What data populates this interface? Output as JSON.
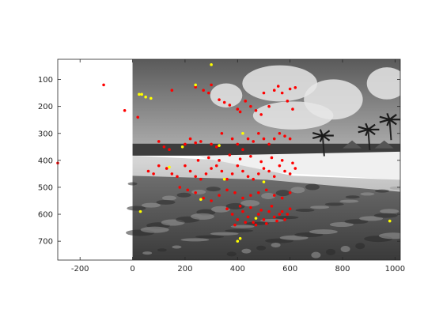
{
  "chart_data": {
    "type": "scatter",
    "title": "",
    "xlabel": "",
    "ylabel": "",
    "xlim": [
      -285,
      1020
    ],
    "ylim": [
      25,
      770
    ],
    "y_reversed": true,
    "grid": false,
    "x_ticks": [
      -200,
      0,
      200,
      400,
      600,
      800,
      1000
    ],
    "x_tick_labels": [
      "-200",
      "0",
      "200",
      "400",
      "600",
      "800",
      "1000"
    ],
    "y_ticks": [
      100,
      200,
      300,
      400,
      500,
      600,
      700
    ],
    "y_tick_labels": [
      "100",
      "200",
      "300",
      "400",
      "500",
      "600",
      "700"
    ],
    "background_image": {
      "description": "grayscale beach photograph",
      "x_range": [
        0,
        1020
      ],
      "y_range": [
        25,
        770
      ]
    },
    "series": [
      {
        "color": "#ff0000",
        "points": [
          [
            -110,
            120
          ],
          [
            -30,
            215
          ],
          [
            -285,
            410
          ],
          [
            20,
            240
          ],
          [
            150,
            140
          ],
          [
            240,
            128
          ],
          [
            270,
            140
          ],
          [
            290,
            150
          ],
          [
            300,
            120
          ],
          [
            330,
            175
          ],
          [
            350,
            185
          ],
          [
            370,
            195
          ],
          [
            400,
            210
          ],
          [
            410,
            220
          ],
          [
            430,
            180
          ],
          [
            450,
            200
          ],
          [
            470,
            215
          ],
          [
            490,
            230
          ],
          [
            500,
            150
          ],
          [
            520,
            200
          ],
          [
            540,
            140
          ],
          [
            555,
            125
          ],
          [
            570,
            150
          ],
          [
            590,
            180
          ],
          [
            600,
            135
          ],
          [
            610,
            210
          ],
          [
            620,
            130
          ],
          [
            100,
            330
          ],
          [
            120,
            350
          ],
          [
            140,
            360
          ],
          [
            200,
            340
          ],
          [
            220,
            320
          ],
          [
            240,
            335
          ],
          [
            260,
            330
          ],
          [
            300,
            340
          ],
          [
            320,
            350
          ],
          [
            340,
            300
          ],
          [
            380,
            320
          ],
          [
            400,
            340
          ],
          [
            420,
            360
          ],
          [
            440,
            320
          ],
          [
            460,
            330
          ],
          [
            480,
            300
          ],
          [
            500,
            320
          ],
          [
            520,
            340
          ],
          [
            540,
            320
          ],
          [
            560,
            300
          ],
          [
            580,
            310
          ],
          [
            600,
            320
          ],
          [
            60,
            440
          ],
          [
            80,
            450
          ],
          [
            100,
            420
          ],
          [
            130,
            430
          ],
          [
            150,
            450
          ],
          [
            170,
            460
          ],
          [
            200,
            420
          ],
          [
            220,
            440
          ],
          [
            240,
            460
          ],
          [
            260,
            470
          ],
          [
            280,
            450
          ],
          [
            300,
            430
          ],
          [
            320,
            420
          ],
          [
            340,
            440
          ],
          [
            360,
            470
          ],
          [
            380,
            450
          ],
          [
            400,
            420
          ],
          [
            420,
            440
          ],
          [
            440,
            460
          ],
          [
            460,
            470
          ],
          [
            480,
            450
          ],
          [
            500,
            430
          ],
          [
            520,
            440
          ],
          [
            540,
            460
          ],
          [
            560,
            420
          ],
          [
            580,
            440
          ],
          [
            600,
            450
          ],
          [
            620,
            430
          ],
          [
            250,
            400
          ],
          [
            290,
            390
          ],
          [
            330,
            400
          ],
          [
            370,
            380
          ],
          [
            410,
            395
          ],
          [
            450,
            385
          ],
          [
            490,
            405
          ],
          [
            530,
            390
          ],
          [
            570,
            400
          ],
          [
            610,
            410
          ],
          [
            180,
            500
          ],
          [
            210,
            510
          ],
          [
            240,
            520
          ],
          [
            270,
            540
          ],
          [
            300,
            550
          ],
          [
            330,
            530
          ],
          [
            360,
            510
          ],
          [
            390,
            520
          ],
          [
            420,
            540
          ],
          [
            450,
            530
          ],
          [
            480,
            520
          ],
          [
            510,
            510
          ],
          [
            540,
            530
          ],
          [
            570,
            540
          ],
          [
            600,
            520
          ],
          [
            360,
            580
          ],
          [
            380,
            600
          ],
          [
            400,
            620
          ],
          [
            420,
            590
          ],
          [
            440,
            610
          ],
          [
            460,
            630
          ],
          [
            480,
            600
          ],
          [
            500,
            620
          ],
          [
            520,
            590
          ],
          [
            540,
            610
          ],
          [
            560,
            600
          ],
          [
            580,
            620
          ],
          [
            600,
            580
          ],
          [
            390,
            640
          ],
          [
            430,
            630
          ],
          [
            470,
            640
          ],
          [
            510,
            635
          ],
          [
            550,
            625
          ],
          [
            590,
            600
          ],
          [
            410,
            570
          ],
          [
            450,
            575
          ],
          [
            490,
            585
          ],
          [
            530,
            570
          ],
          [
            570,
            590
          ]
        ]
      },
      {
        "color": "#ffff00",
        "points": [
          [
            300,
            45
          ],
          [
            35,
            155
          ],
          [
            50,
            165
          ],
          [
            70,
            170
          ],
          [
            25,
            155
          ],
          [
            30,
            590
          ],
          [
            980,
            625
          ],
          [
            410,
            690
          ],
          [
            400,
            700
          ],
          [
            240,
            120
          ],
          [
            420,
            300
          ],
          [
            190,
            350
          ],
          [
            330,
            345
          ],
          [
            260,
            545
          ],
          [
            500,
            480
          ],
          [
            470,
            615
          ],
          [
            350,
            470
          ],
          [
            140,
            425
          ]
        ]
      }
    ]
  }
}
